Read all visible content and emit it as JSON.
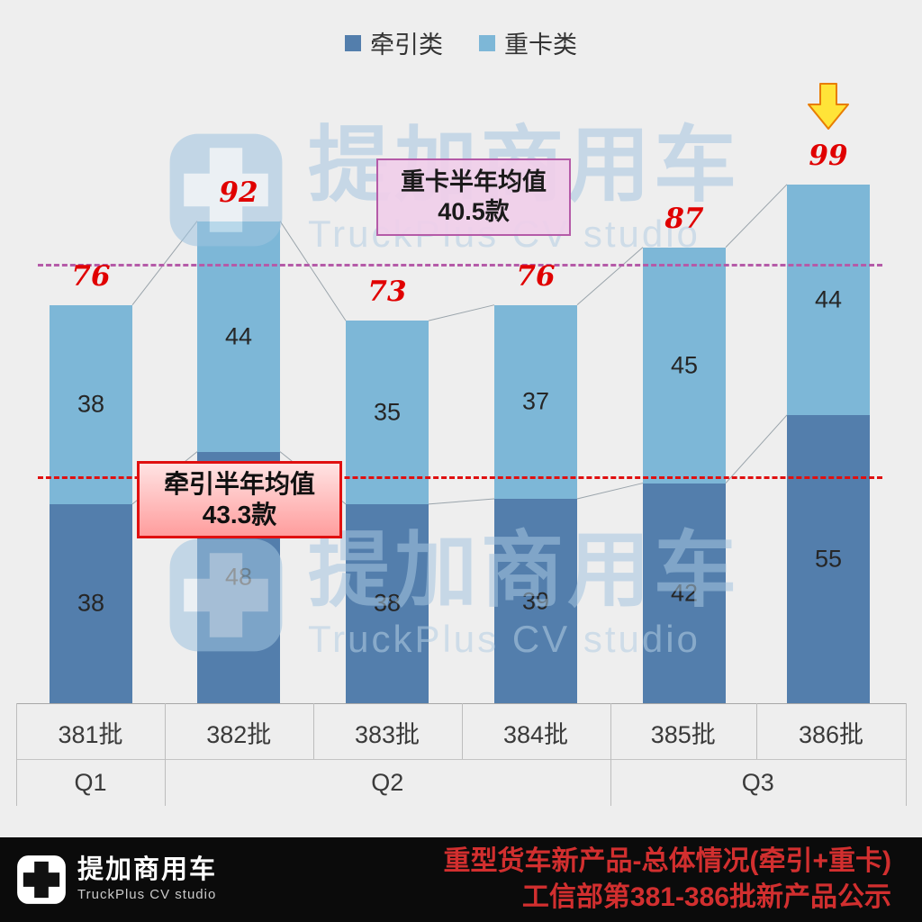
{
  "legend": {
    "items": [
      {
        "label": "牵引类",
        "color": "#537eac"
      },
      {
        "label": "重卡类",
        "color": "#7db7d7"
      }
    ]
  },
  "chart_data": {
    "type": "bar",
    "subtype": "stacked",
    "title": "重型货车新产品-总体情况(牵引+重卡)",
    "categories": [
      "381批",
      "382批",
      "383批",
      "384批",
      "385批",
      "386批"
    ],
    "quarter_groups": [
      {
        "label": "Q1",
        "start": 0,
        "end": 0
      },
      {
        "label": "Q2",
        "start": 1,
        "end": 3
      },
      {
        "label": "Q3",
        "start": 4,
        "end": 5
      }
    ],
    "series": [
      {
        "name": "牵引类",
        "color": "#537eac",
        "values": [
          38,
          48,
          38,
          39,
          42,
          55
        ]
      },
      {
        "name": "重卡类",
        "color": "#7db7d7",
        "values": [
          38,
          44,
          35,
          37,
          45,
          44
        ]
      }
    ],
    "totals": [
      76,
      92,
      73,
      76,
      87,
      99
    ],
    "total_label_color": "#e00000",
    "avg_lines": [
      {
        "name": "heavy-avg",
        "avg_value": 40.5,
        "stack_value": 83.8,
        "color": "#b55ba8"
      },
      {
        "name": "tractor-avg",
        "avg_value": 43.3,
        "stack_value": 43.3,
        "color": "#e01010"
      }
    ],
    "highlight_index": 5,
    "connector_color": "#9aa4ab"
  },
  "annotations": {
    "heavy_avg": {
      "line1": "重卡半年均值",
      "line2": "40.5款"
    },
    "tractor_avg": {
      "line1": "牵引半年均值",
      "line2": "43.3款"
    }
  },
  "watermark": {
    "brand": "提加商用车",
    "subtitle": "TruckPlus CV studio"
  },
  "footer": {
    "brand": "提加商用车",
    "subtitle": "TruckPlus CV studio",
    "title_line1": "重型货车新产品-总体情况(牵引+重卡)",
    "title_line2": "工信部第381-386批新产品公示"
  }
}
